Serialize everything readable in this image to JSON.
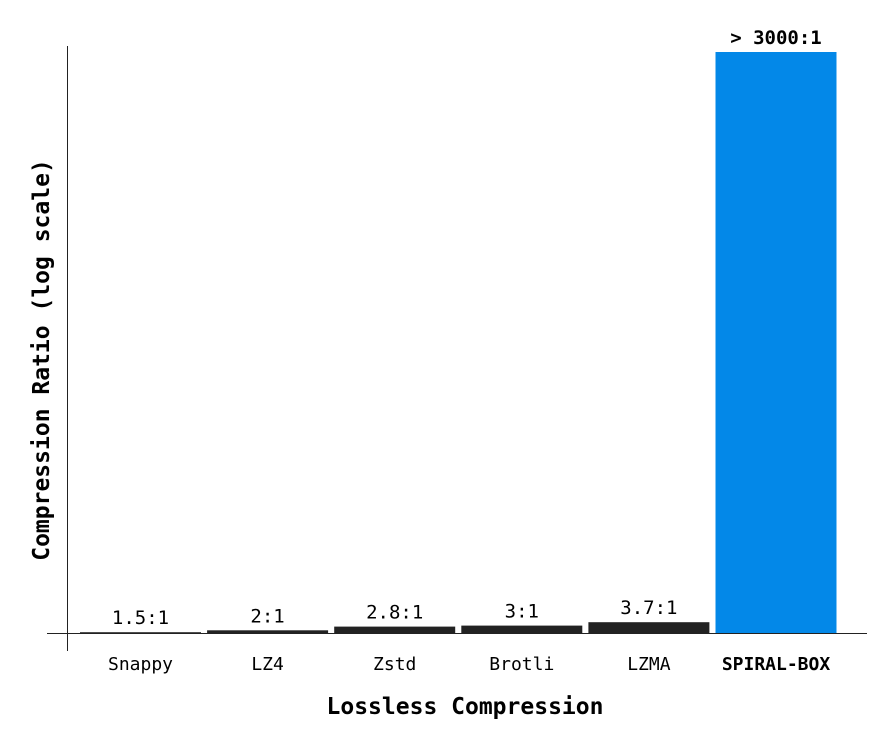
{
  "chart_data": {
    "type": "bar",
    "title": "",
    "xlabel": "Lossless Compression",
    "ylabel": "Compression Ratio (log scale)",
    "y_scale": "log",
    "ylim": [
      1,
      3000
    ],
    "grid": false,
    "categories": [
      "Snappy",
      "LZ4",
      "Zstd",
      "Brotli",
      "LZMA",
      "SPIRAL-BOX"
    ],
    "values": [
      1.5,
      2,
      2.8,
      3,
      3.7,
      3000
    ],
    "value_labels": [
      "1.5:1",
      "2:1",
      "2.8:1",
      "3:1",
      "3.7:1",
      "> 3000:1"
    ],
    "highlight_category": "SPIRAL-BOX",
    "colors": {
      "default": "#222222",
      "highlight": "#0388e8"
    }
  }
}
